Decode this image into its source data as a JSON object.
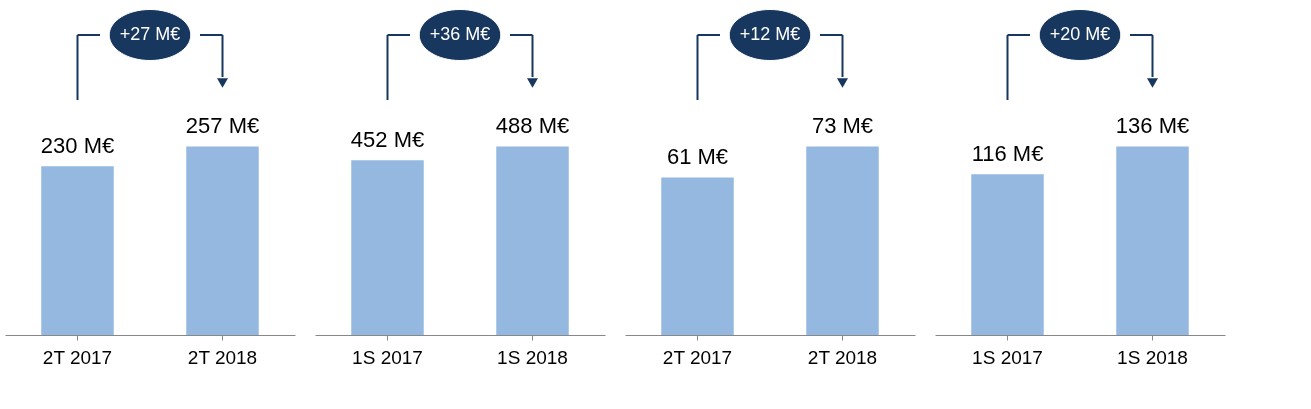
{
  "chart_data": [
    {
      "type": "bar",
      "categories": [
        "2T 2017",
        "2T 2018"
      ],
      "values": [
        230,
        257
      ],
      "value_labels": [
        "230 M€",
        "257 M€"
      ],
      "color": "#95b8e0",
      "annotations": [
        "+27 M€"
      ]
    },
    {
      "type": "bar",
      "categories": [
        "1S 2017",
        "1S 2018"
      ],
      "values": [
        452,
        488
      ],
      "value_labels": [
        "452 M€",
        "488 M€"
      ],
      "color": "#95b8e0",
      "annotations": [
        "+36 M€"
      ]
    },
    {
      "type": "bar",
      "categories": [
        "2T 2017",
        "2T 2018"
      ],
      "values": [
        61,
        73
      ],
      "value_labels": [
        "61 M€",
        "73 M€"
      ],
      "color": "#95b8e0",
      "annotations": [
        "+12 M€"
      ]
    },
    {
      "type": "bar",
      "categories": [
        "1S 2017",
        "1S 2018"
      ],
      "values": [
        116,
        136
      ],
      "value_labels": [
        "116 M€",
        "136 M€"
      ],
      "color": "#95b8e0",
      "annotations": [
        "+20 M€"
      ]
    }
  ]
}
